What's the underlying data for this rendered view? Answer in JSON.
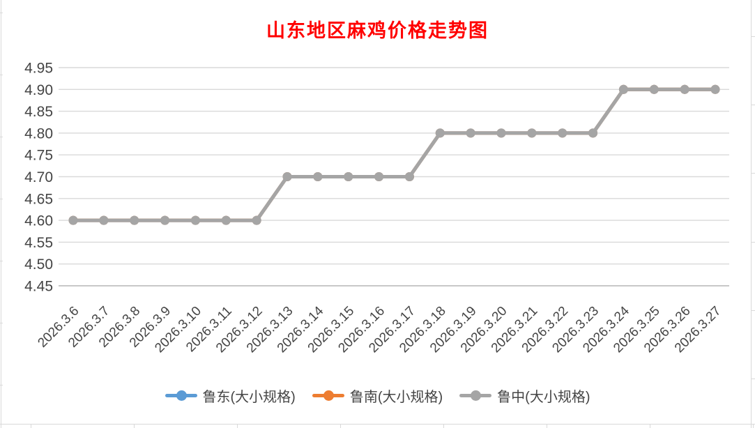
{
  "sheet": {
    "background": "#FFFFFF",
    "gridline_color": "#D9D9D9"
  },
  "chart_data": {
    "type": "line",
    "title": "山东地区麻鸡价格走势图",
    "title_color": "#FF0000",
    "xlabel": "",
    "ylabel": "",
    "ylim": [
      4.45,
      4.95
    ],
    "y_tick_step": 0.05,
    "y_tick_labels": [
      "4.95",
      "4.90",
      "4.85",
      "4.80",
      "4.75",
      "4.70",
      "4.65",
      "4.60",
      "4.55",
      "4.50",
      "4.45"
    ],
    "grid": true,
    "legend_position": "bottom",
    "axis_label_color": "#444444",
    "gridline_color": "#D9D9D9",
    "axis_line_color": "#C8C8C8",
    "categories": [
      "2026.3.6",
      "2026.3.7",
      "2026.3.8",
      "2026.3.9",
      "2026.3.10",
      "2026.3.11",
      "2026.3.12",
      "2026.3.13",
      "2026.3.14",
      "2026.3.15",
      "2026.3.16",
      "2026.3.17",
      "2026.3.18",
      "2026.3.19",
      "2026.3.20",
      "2026.3.21",
      "2026.3.22",
      "2026.3.23",
      "2026.3.24",
      "2026.3.25",
      "2026.3.26",
      "2026.3.27"
    ],
    "series": [
      {
        "name": "鲁东(大小规格)",
        "color": "#5B9BD5",
        "values": [
          4.6,
          4.6,
          4.6,
          4.6,
          4.6,
          4.6,
          4.6,
          4.7,
          4.7,
          4.7,
          4.7,
          4.7,
          4.8,
          4.8,
          4.8,
          4.8,
          4.8,
          4.8,
          4.9,
          4.9,
          4.9,
          4.9
        ]
      },
      {
        "name": "鲁南(大小规格)",
        "color": "#ED7D31",
        "values": [
          4.6,
          4.6,
          4.6,
          4.6,
          4.6,
          4.6,
          4.6,
          4.7,
          4.7,
          4.7,
          4.7,
          4.7,
          4.8,
          4.8,
          4.8,
          4.8,
          4.8,
          4.8,
          4.9,
          4.9,
          4.9,
          4.9
        ]
      },
      {
        "name": "鲁中(大小规格)",
        "color": "#A5A5A5",
        "values": [
          4.6,
          4.6,
          4.6,
          4.6,
          4.6,
          4.6,
          4.6,
          4.7,
          4.7,
          4.7,
          4.7,
          4.7,
          4.8,
          4.8,
          4.8,
          4.8,
          4.8,
          4.8,
          4.9,
          4.9,
          4.9,
          4.9
        ]
      }
    ],
    "visible_top_series": "鲁中(大小规格)"
  }
}
